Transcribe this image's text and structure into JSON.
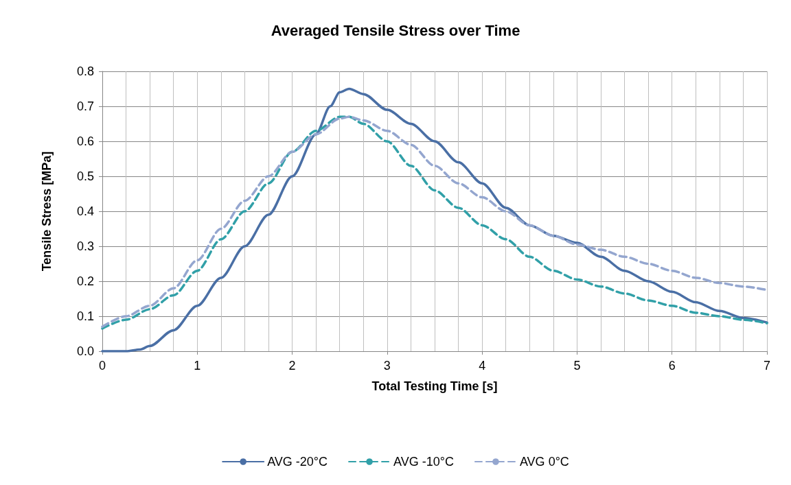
{
  "chart_data": {
    "type": "line",
    "title": "Averaged Tensile Stress over Time",
    "xlabel": "Total Testing Time [s]",
    "ylabel": "Tensile Stress [MPa]",
    "xlim": [
      0,
      7
    ],
    "xticks": [
      0,
      1,
      2,
      3,
      4,
      5,
      6,
      7
    ],
    "ylim": [
      0,
      0.8
    ],
    "yticks": [
      {
        "value": 0,
        "label": "0.0"
      },
      0.1,
      0.2,
      0.3,
      0.4,
      0.5,
      0.6,
      0.7,
      0.8
    ],
    "grid": true,
    "legend": "bottom",
    "marker": "none",
    "series": [
      {
        "name": "AVG -20°C",
        "color": "#4a6fa5",
        "line_style": "solid",
        "x": [
          0,
          0.25,
          0.4,
          0.5,
          0.75,
          1,
          1.25,
          1.5,
          1.75,
          2,
          2.25,
          2.4,
          2.5,
          2.6,
          2.75,
          3,
          3.25,
          3.5,
          3.75,
          4,
          4.25,
          4.5,
          4.75,
          5,
          5.25,
          5.5,
          5.75,
          6,
          6.25,
          6.5,
          6.75,
          7
        ],
        "values": [
          0,
          0,
          0.005,
          0.015,
          0.06,
          0.13,
          0.21,
          0.3,
          0.39,
          0.5,
          0.62,
          0.7,
          0.74,
          0.75,
          0.735,
          0.69,
          0.65,
          0.6,
          0.54,
          0.48,
          0.41,
          0.36,
          0.33,
          0.31,
          0.27,
          0.23,
          0.2,
          0.17,
          0.14,
          0.115,
          0.095,
          0.082
        ]
      },
      {
        "name": "AVG -10°C",
        "color": "#31a0a8",
        "line_style": "dashed",
        "x": [
          0,
          0.25,
          0.5,
          0.75,
          1,
          1.25,
          1.5,
          1.75,
          2,
          2.25,
          2.5,
          2.6,
          2.75,
          3,
          3.25,
          3.5,
          3.75,
          4,
          4.25,
          4.5,
          4.75,
          5,
          5.25,
          5.5,
          5.75,
          6,
          6.25,
          6.5,
          6.75,
          7
        ],
        "values": [
          0.065,
          0.09,
          0.12,
          0.16,
          0.23,
          0.32,
          0.4,
          0.48,
          0.57,
          0.63,
          0.67,
          0.67,
          0.65,
          0.6,
          0.53,
          0.46,
          0.41,
          0.36,
          0.32,
          0.27,
          0.23,
          0.205,
          0.185,
          0.165,
          0.145,
          0.13,
          0.11,
          0.1,
          0.09,
          0.08
        ]
      },
      {
        "name": "AVG 0°C",
        "color": "#94a6cf",
        "line_style": "dashed",
        "x": [
          0,
          0.25,
          0.5,
          0.75,
          1,
          1.25,
          1.5,
          1.75,
          2,
          2.25,
          2.5,
          2.6,
          2.75,
          3,
          3.25,
          3.5,
          3.75,
          4,
          4.25,
          4.5,
          4.75,
          5,
          5.25,
          5.5,
          5.75,
          6,
          6.25,
          6.5,
          6.75,
          7
        ],
        "values": [
          0.07,
          0.1,
          0.13,
          0.18,
          0.26,
          0.35,
          0.43,
          0.5,
          0.57,
          0.62,
          0.665,
          0.67,
          0.66,
          0.63,
          0.59,
          0.53,
          0.48,
          0.44,
          0.4,
          0.36,
          0.33,
          0.305,
          0.29,
          0.27,
          0.25,
          0.23,
          0.21,
          0.195,
          0.185,
          0.175
        ]
      }
    ]
  }
}
